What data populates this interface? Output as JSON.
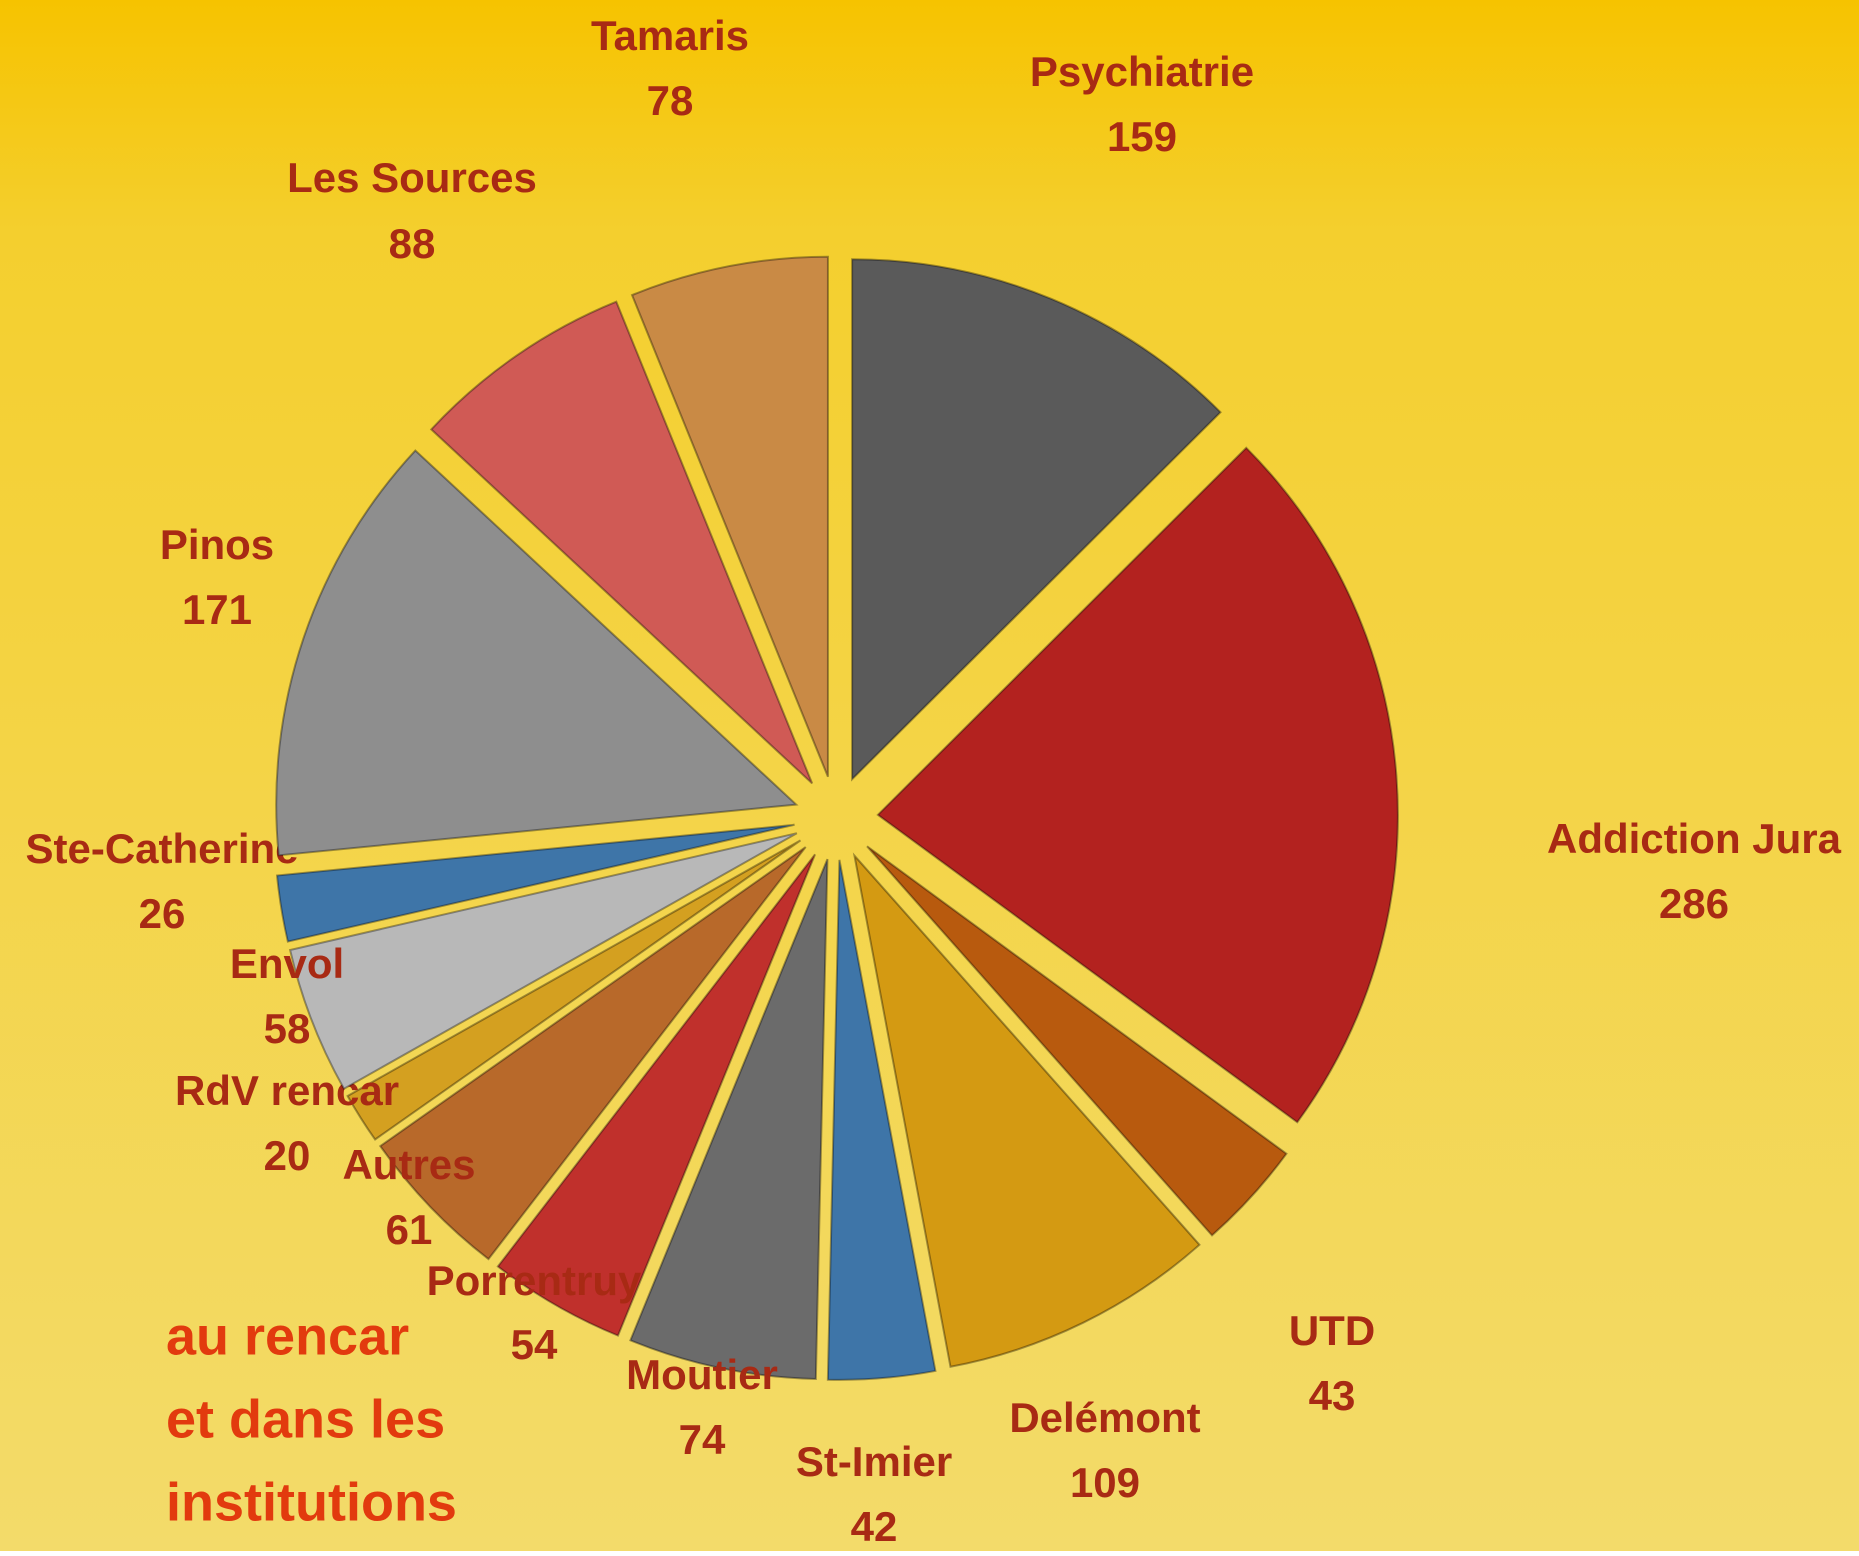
{
  "chart_data": {
    "type": "pie",
    "categories": [
      "Psychiatrie",
      "Addiction Jura",
      "UTD",
      "Delémont",
      "St-Imier",
      "Moutier",
      "Porrentruy",
      "Autres",
      "RdV rencar",
      "Envol",
      "Ste-Catherine",
      "Pinos",
      "Les Sources",
      "Tamaris"
    ],
    "values": [
      159,
      286,
      43,
      109,
      42,
      74,
      54,
      61,
      20,
      58,
      26,
      171,
      88,
      78
    ],
    "colors": [
      "#5a5a5a",
      "#b3221f",
      "#b85a0e",
      "#d49a12",
      "#3e75a8",
      "#6b6b6b",
      "#c0302c",
      "#b8692a",
      "#d4a020",
      "#b8b8b8",
      "#3e75a8",
      "#8e8e8e",
      "#d05a55",
      "#c98a45"
    ],
    "annotations": [
      "au rencar",
      "et dans les",
      "institutions"
    ]
  }
}
